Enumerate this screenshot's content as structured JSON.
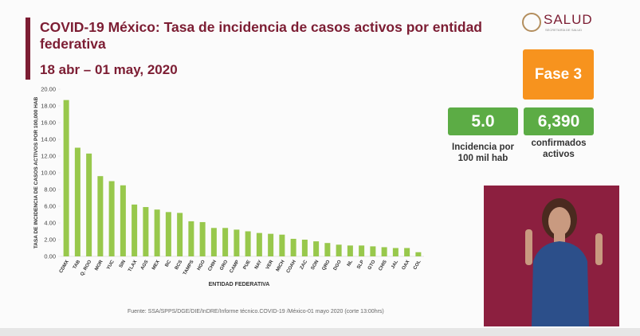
{
  "header": {
    "title": "COVID-19 México: Tasa de incidencia de casos activos por entidad federativa",
    "subtitle": "18 abr – 01 may, 2020",
    "logo": "SALUD",
    "logo_sub": "SECRETARÍA DE SALUD"
  },
  "panels": {
    "phase": "Fase 3",
    "incidence": {
      "value": "5.0",
      "label": "Incidencia por 100 mil hab"
    },
    "active": {
      "value": "6,390",
      "label": "confirmados activos"
    }
  },
  "source": "Fuente: SSA/SPPS/DGE/DIE/InDRE/Informe técnico.COVID-19 /México-01 mayo 2020 (corte 13:00hrs)",
  "chart_data": {
    "type": "bar",
    "ylabel": "TASA DE INCIDENCIA DE CASOS ACTIVOS POR 100,000 HAB",
    "xlabel": "ENTIDAD FEDERATIVA",
    "categories": [
      "CDMX",
      "TAB",
      "Q. ROO",
      "MOR",
      "YUC",
      "SIN",
      "TLAX",
      "AGS",
      "MEX",
      "BC",
      "BCS",
      "TAMPS",
      "HGO",
      "CHIH",
      "GRO",
      "CAMP",
      "PUE",
      "NAY",
      "VER",
      "MICH",
      "COAH",
      "ZAC",
      "SON",
      "QRO",
      "DGO",
      "NL",
      "SLP",
      "GTO",
      "CHIS",
      "JAL",
      "OAX",
      "COL"
    ],
    "values": [
      18.7,
      13.0,
      12.3,
      9.6,
      9.0,
      8.5,
      6.2,
      5.9,
      5.6,
      5.3,
      5.2,
      4.2,
      4.1,
      3.4,
      3.4,
      3.2,
      3.0,
      2.8,
      2.7,
      2.6,
      2.1,
      2.0,
      1.8,
      1.6,
      1.4,
      1.3,
      1.3,
      1.2,
      1.1,
      1.0,
      1.0,
      0.5
    ],
    "color": "#98c84c",
    "ylim": [
      0,
      20
    ],
    "yticks": [
      {
        "value": 0,
        "label": "0.00"
      },
      {
        "value": 2,
        "label": "2.00"
      },
      {
        "value": 4,
        "label": "4.00"
      },
      {
        "value": 6,
        "label": "6.00"
      },
      {
        "value": 8,
        "label": "8.00"
      },
      {
        "value": 10,
        "label": "10.00"
      },
      {
        "value": 12,
        "label": "12.00"
      },
      {
        "value": 14,
        "label": "14.00"
      },
      {
        "value": 16,
        "label": "16.00"
      },
      {
        "value": 18,
        "label": "18.00"
      },
      {
        "value": 20,
        "label": "20.00"
      }
    ],
    "grid": false
  }
}
